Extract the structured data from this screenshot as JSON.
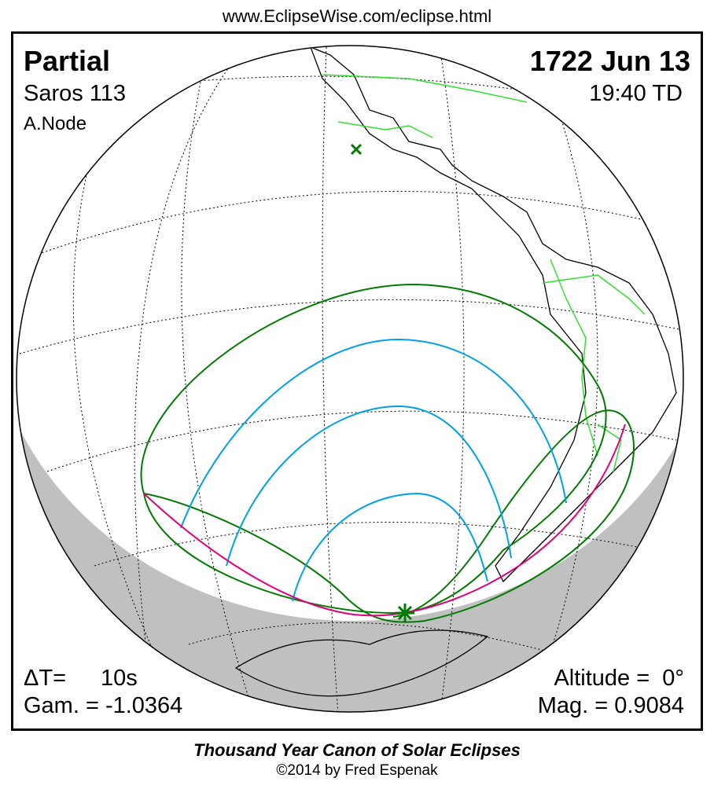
{
  "url": "www.EclipseWise.com/eclipse.html",
  "eclipse": {
    "type": "Partial",
    "saros": "Saros 113",
    "node": "A.Node",
    "date": "1722 Jun 13",
    "time": "19:40 TD",
    "delta_t_label": "ΔT=",
    "delta_t_value": "10s",
    "gamma": "Gam. = -1.0364",
    "altitude": "Altitude =  0°",
    "magnitude": "Mag. = 0.9084"
  },
  "footer": {
    "title": "Thousand Year Canon of Solar Eclipses",
    "copyright": "©2014 by Fred Espenak"
  },
  "colors": {
    "penumbra_limits": "#007a00",
    "magnitude_curves": "#00a0e8",
    "sunrise_sunset": "#e0007a",
    "borders": "#22dd22",
    "night": "#c0c0c0"
  },
  "markers": {
    "subsolar_point": "x-icon",
    "greatest_eclipse": "star-icon"
  }
}
